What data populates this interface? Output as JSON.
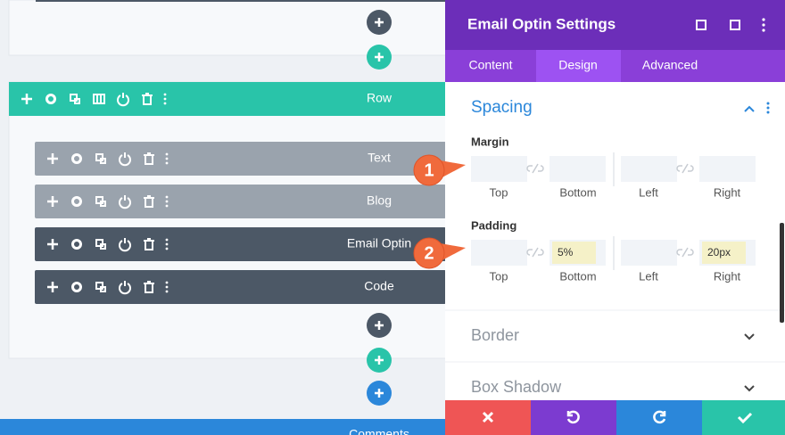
{
  "builder": {
    "row_label": "Row",
    "modules": [
      "Text",
      "Blog",
      "Email Optin",
      "Code"
    ],
    "next_row_label": "Comments"
  },
  "settings_panel": {
    "title": "Email Optin Settings",
    "tabs": [
      "Content",
      "Design",
      "Advanced"
    ],
    "section": "Spacing",
    "margin": {
      "label": "Margin",
      "fields": [
        "Top",
        "Bottom",
        "Left",
        "Right"
      ]
    },
    "padding": {
      "label": "Padding",
      "fields": [
        "Top",
        "Bottom",
        "Left",
        "Right"
      ],
      "bottom_value": "5%",
      "right_value": "20px"
    },
    "collapsed_sections": [
      "Border",
      "Box Shadow"
    ]
  },
  "callouts": [
    "1",
    "2"
  ]
}
